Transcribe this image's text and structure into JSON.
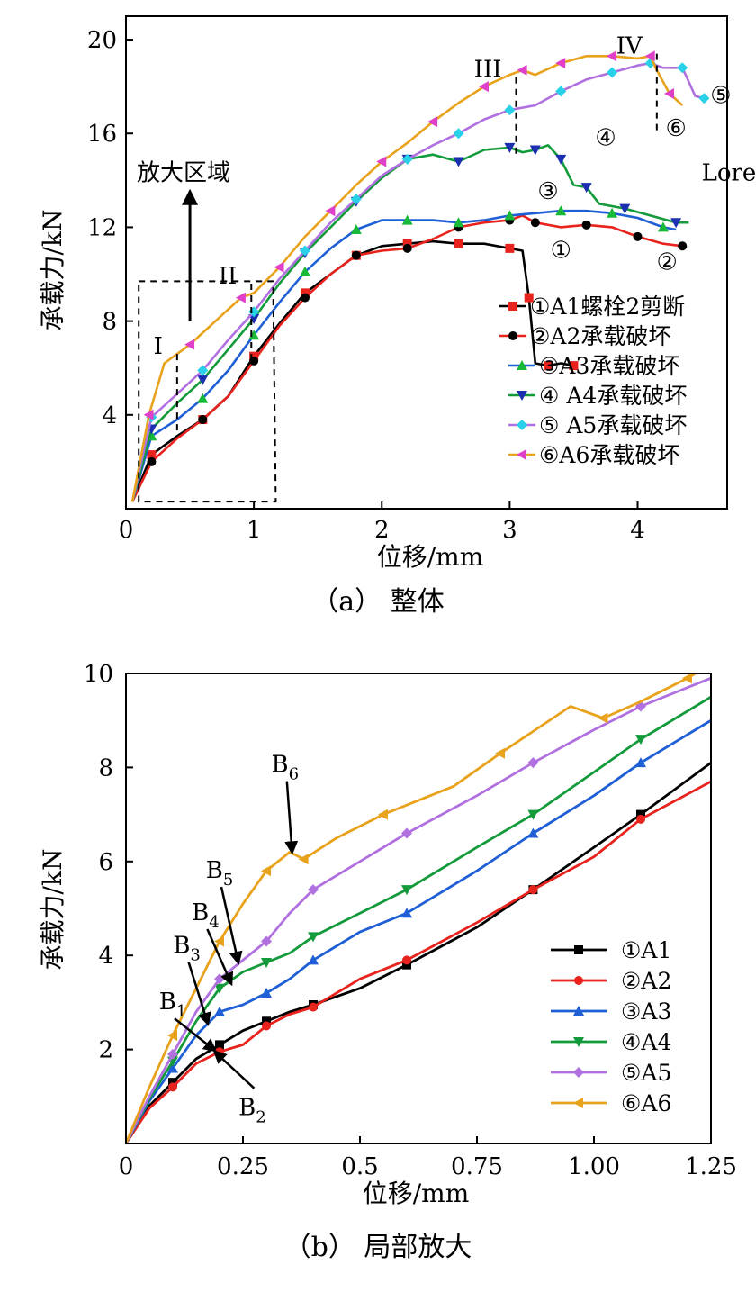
{
  "colors": {
    "A1": "#000000",
    "A2": "#e8231d",
    "A3": "#1f5fd6",
    "A4": "#139a3a",
    "A5": "#b070e0",
    "A6": "#e8a21c",
    "A3_panel_a": "#18b838",
    "A4_panel_a": "#1b2fb0",
    "A5_panel_a": "#28d0e8",
    "A6_panel_a": "#e040c8",
    "A5_line_panel_a": "#b070e0",
    "A6_line_panel_a": "#e8a21c",
    "A4_line_panel_a": "#139a3a",
    "A3_line_panel_a": "#1f5fd6"
  },
  "chart_data": [
    {
      "type": "line",
      "caption": "（a） 整体",
      "xlabel": "位移/mm",
      "ylabel": "承载力/kN",
      "xlim": [
        0,
        4.7
      ],
      "ylim": [
        0,
        21
      ],
      "x_ticks": [
        0,
        1,
        2,
        3,
        4
      ],
      "y_ticks": [
        4,
        8,
        12,
        16,
        20
      ],
      "grid": false,
      "legend_position": "right-middle",
      "zoom_label": "放大区域",
      "stage_labels": [
        {
          "label": "I",
          "x": 0.4,
          "y": 7.2
        },
        {
          "label": "II",
          "x": 0.98,
          "y": 10.2
        },
        {
          "label": "III",
          "x": 3.05,
          "y": 19.0
        },
        {
          "label": "IV",
          "x": 4.15,
          "y": 20.0
        }
      ],
      "curve_labels": [
        {
          "label": "①",
          "x": 3.4,
          "y": 10.7
        },
        {
          "label": "②",
          "x": 4.23,
          "y": 10.2
        },
        {
          "label": "③",
          "x": 3.3,
          "y": 13.2
        },
        {
          "label": "④",
          "x": 3.75,
          "y": 15.5
        },
        {
          "label": "⑤",
          "x": 4.65,
          "y": 17.3
        },
        {
          "label": "⑥",
          "x": 4.3,
          "y": 15.9
        },
        {
          "label": "Lorem I",
          "x": 4.5,
          "y": 14.0
        }
      ],
      "series": [
        {
          "name": "①A1螺栓2剪断",
          "key": "A1",
          "x": [
            0.05,
            0.2,
            0.4,
            0.6,
            0.8,
            1.0,
            1.2,
            1.4,
            1.6,
            1.8,
            2.0,
            2.2,
            2.4,
            2.6,
            2.8,
            3.0,
            3.1,
            3.15,
            3.2,
            3.3,
            3.4,
            3.5
          ],
          "y": [
            0.3,
            2.3,
            3.1,
            3.8,
            4.8,
            6.5,
            7.9,
            9.2,
            10.0,
            10.8,
            11.2,
            11.3,
            11.4,
            11.3,
            11.3,
            11.1,
            11.0,
            9.0,
            6.2,
            6.1,
            6.2,
            6.1
          ]
        },
        {
          "name": "②A2承载破坏",
          "key": "A2",
          "x": [
            0.05,
            0.2,
            0.4,
            0.6,
            0.8,
            1.0,
            1.2,
            1.4,
            1.6,
            1.8,
            2.0,
            2.2,
            2.4,
            2.6,
            2.8,
            3.0,
            3.1,
            3.2,
            3.4,
            3.6,
            3.8,
            4.0,
            4.2,
            4.35
          ],
          "y": [
            0.3,
            2.0,
            3.0,
            3.8,
            4.8,
            6.3,
            7.8,
            9.0,
            10.0,
            10.8,
            11.0,
            11.1,
            11.5,
            12.0,
            12.2,
            12.3,
            12.5,
            12.2,
            12.0,
            12.1,
            12.0,
            11.6,
            11.3,
            11.2
          ]
        },
        {
          "name": "③A3承载破坏",
          "key": "A3",
          "x": [
            0.05,
            0.2,
            0.4,
            0.6,
            0.8,
            1.0,
            1.2,
            1.4,
            1.6,
            1.8,
            2.0,
            2.2,
            2.4,
            2.6,
            2.8,
            3.0,
            3.2,
            3.4,
            3.6,
            3.8,
            4.0,
            4.2,
            4.3
          ],
          "y": [
            0.3,
            3.1,
            3.8,
            4.7,
            5.9,
            7.4,
            8.8,
            10.1,
            11.1,
            11.9,
            12.3,
            12.3,
            12.3,
            12.2,
            12.3,
            12.5,
            12.6,
            12.7,
            12.7,
            12.6,
            12.4,
            12.0,
            11.9
          ]
        },
        {
          "name": "④ A4承载破坏",
          "key": "A4",
          "x": [
            0.05,
            0.2,
            0.4,
            0.6,
            0.8,
            1.0,
            1.2,
            1.4,
            1.6,
            1.8,
            2.0,
            2.2,
            2.4,
            2.6,
            2.8,
            3.0,
            3.1,
            3.2,
            3.3,
            3.4,
            3.5,
            3.6,
            3.7,
            3.9,
            4.1,
            4.3,
            4.4
          ],
          "y": [
            0.3,
            3.4,
            4.5,
            5.5,
            6.8,
            8.1,
            9.6,
            10.9,
            12.0,
            13.1,
            14.1,
            14.9,
            15.1,
            14.8,
            15.3,
            15.4,
            15.2,
            15.3,
            15.5,
            14.9,
            13.8,
            13.7,
            13.0,
            12.8,
            12.5,
            12.2,
            12.2
          ]
        },
        {
          "name": "⑤ A5承载破坏",
          "key": "A5",
          "x": [
            0.05,
            0.2,
            0.4,
            0.6,
            0.8,
            1.0,
            1.2,
            1.4,
            1.6,
            1.8,
            2.0,
            2.2,
            2.4,
            2.6,
            2.8,
            3.0,
            3.2,
            3.4,
            3.6,
            3.8,
            4.0,
            4.1,
            4.2,
            4.35,
            4.45,
            4.52
          ],
          "y": [
            0.3,
            3.9,
            4.9,
            5.9,
            7.2,
            8.4,
            9.8,
            11.0,
            12.2,
            13.2,
            14.2,
            14.9,
            15.5,
            16.0,
            16.6,
            17.0,
            17.2,
            17.8,
            18.3,
            18.6,
            18.9,
            19.0,
            18.8,
            18.8,
            17.6,
            17.5
          ]
        },
        {
          "name": "⑥A6承载破坏",
          "key": "A6",
          "x": [
            0.05,
            0.18,
            0.3,
            0.5,
            0.7,
            0.9,
            1.0,
            1.2,
            1.4,
            1.6,
            1.8,
            2.0,
            2.2,
            2.4,
            2.6,
            2.8,
            3.0,
            3.1,
            3.2,
            3.4,
            3.6,
            3.8,
            4.0,
            4.1,
            4.15,
            4.25,
            4.35
          ],
          "y": [
            0.3,
            4.0,
            6.2,
            7.0,
            8.0,
            9.0,
            9.2,
            10.3,
            11.6,
            12.7,
            13.8,
            14.8,
            15.6,
            16.5,
            17.3,
            18.0,
            18.5,
            18.7,
            18.5,
            19.0,
            19.3,
            19.3,
            19.2,
            19.3,
            18.7,
            17.7,
            17.2
          ]
        }
      ]
    },
    {
      "type": "line",
      "caption": "（b） 局部放大",
      "xlabel": "位移/mm",
      "ylabel": "承载力/kN",
      "xlim": [
        0,
        1.25
      ],
      "ylim": [
        0,
        10
      ],
      "x_ticks": [
        "0",
        "0.25",
        "0.5",
        "0.75",
        "1.00",
        "1.25"
      ],
      "x_tick_values": [
        0,
        0.25,
        0.5,
        0.75,
        1.0,
        1.25
      ],
      "y_ticks": [
        2,
        4,
        6,
        8,
        10
      ],
      "grid": false,
      "legend_position": "bottom-right",
      "point_labels": [
        {
          "label": "B",
          "sub": "1"
        },
        {
          "label": "B",
          "sub": "2"
        },
        {
          "label": "B",
          "sub": "3"
        },
        {
          "label": "B",
          "sub": "4"
        },
        {
          "label": "B",
          "sub": "5"
        },
        {
          "label": "B",
          "sub": "6"
        }
      ],
      "series": [
        {
          "name": "①A1",
          "key": "A1",
          "x": [
            0,
            0.05,
            0.1,
            0.15,
            0.2,
            0.25,
            0.3,
            0.35,
            0.4,
            0.5,
            0.6,
            0.75,
            0.87,
            1.0,
            1.1,
            1.25
          ],
          "y": [
            0,
            0.8,
            1.3,
            1.8,
            2.1,
            2.4,
            2.6,
            2.8,
            2.95,
            3.3,
            3.8,
            4.6,
            5.4,
            6.3,
            7.0,
            8.1
          ]
        },
        {
          "name": "②A2",
          "key": "A2",
          "x": [
            0,
            0.05,
            0.1,
            0.15,
            0.2,
            0.25,
            0.3,
            0.35,
            0.4,
            0.5,
            0.6,
            0.75,
            0.87,
            1.0,
            1.1,
            1.25
          ],
          "y": [
            0,
            0.75,
            1.2,
            1.7,
            1.95,
            2.1,
            2.5,
            2.75,
            2.9,
            3.5,
            3.9,
            4.7,
            5.4,
            6.1,
            6.9,
            7.7
          ]
        },
        {
          "name": "③A3",
          "key": "A3",
          "x": [
            0,
            0.05,
            0.1,
            0.15,
            0.2,
            0.25,
            0.3,
            0.35,
            0.4,
            0.5,
            0.6,
            0.75,
            0.87,
            1.0,
            1.1,
            1.25
          ],
          "y": [
            0,
            0.9,
            1.6,
            2.3,
            2.8,
            2.95,
            3.2,
            3.5,
            3.9,
            4.5,
            4.9,
            5.8,
            6.6,
            7.4,
            8.1,
            9.0
          ]
        },
        {
          "name": "④A4",
          "key": "A4",
          "x": [
            0,
            0.05,
            0.1,
            0.15,
            0.2,
            0.25,
            0.3,
            0.35,
            0.4,
            0.5,
            0.6,
            0.75,
            0.87,
            1.0,
            1.1,
            1.25
          ],
          "y": [
            0,
            0.95,
            1.75,
            2.6,
            3.3,
            3.65,
            3.85,
            4.05,
            4.4,
            4.9,
            5.4,
            6.3,
            7.0,
            7.9,
            8.6,
            9.5
          ]
        },
        {
          "name": "⑤A5",
          "key": "A5",
          "x": [
            0,
            0.05,
            0.1,
            0.15,
            0.2,
            0.25,
            0.3,
            0.35,
            0.4,
            0.5,
            0.6,
            0.75,
            0.87,
            1.0,
            1.1,
            1.25
          ],
          "y": [
            0,
            1.0,
            1.9,
            2.8,
            3.5,
            3.9,
            4.3,
            4.9,
            5.4,
            6.0,
            6.6,
            7.4,
            8.1,
            8.8,
            9.3,
            9.9
          ]
        },
        {
          "name": "⑥A6",
          "key": "A6",
          "x": [
            0,
            0.05,
            0.1,
            0.15,
            0.2,
            0.25,
            0.3,
            0.35,
            0.38,
            0.45,
            0.55,
            0.7,
            0.8,
            0.95,
            1.02,
            1.1,
            1.2,
            1.25
          ],
          "y": [
            0,
            1.2,
            2.3,
            3.3,
            4.3,
            5.1,
            5.8,
            6.2,
            6.05,
            6.5,
            7.0,
            7.6,
            8.3,
            9.3,
            9.05,
            9.4,
            9.9,
            10.2
          ]
        }
      ]
    }
  ]
}
